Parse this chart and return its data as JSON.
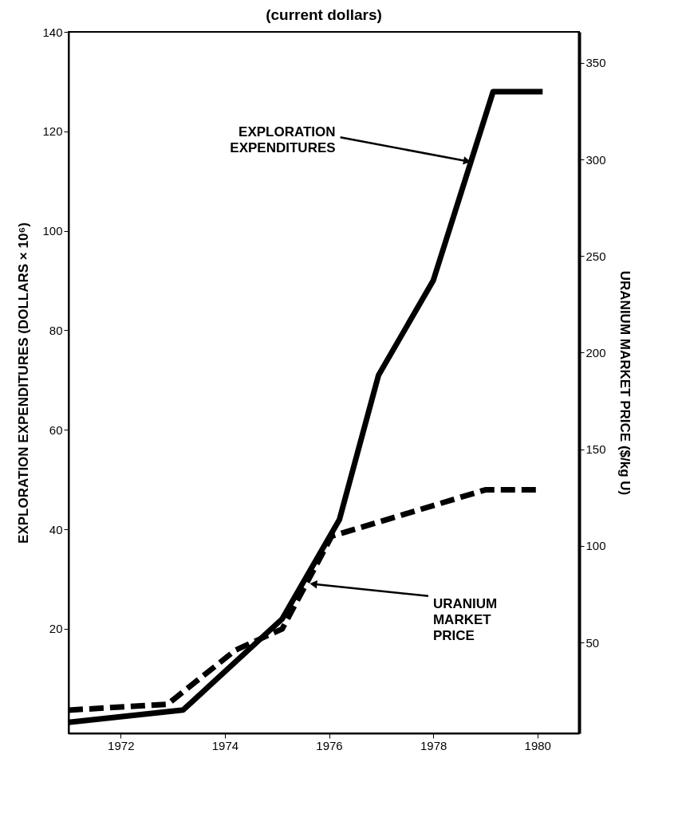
{
  "chart_data": {
    "type": "line",
    "title": "(current dollars)",
    "ylabel": "EXPLORATION EXPENDITURES  (DOLLARS × 10⁶)",
    "y2label": "URANIUM MARKET PRICE ($/kg U)",
    "xlim": [
      1971,
      1980.8
    ],
    "xticks": [
      1972,
      1974,
      1976,
      1978,
      1980
    ],
    "ylim": [
      -1,
      140
    ],
    "yticks": [
      20,
      40,
      60,
      80,
      100,
      120,
      140
    ],
    "y2lim": [
      3,
      366
    ],
    "y2ticks": [
      50,
      100,
      150,
      200,
      250,
      300,
      350
    ],
    "series": [
      {
        "color": "#000000",
        "line_style": "solid",
        "x": [
          1971,
          1973.2,
          1975.1,
          1976.2,
          1976.95,
          1978,
          1979.15,
          1980.1
        ],
        "values": [
          1.2,
          3.7,
          22,
          42,
          71,
          90,
          128,
          128
        ]
      },
      {
        "color": "#000000",
        "line_style": "dashed",
        "axis": "y2",
        "x": [
          1971,
          1972.9,
          1974.2,
          1975.1,
          1976.05,
          1977.4,
          1979,
          1980.05
        ],
        "values": [
          15,
          18,
          46,
          57,
          105,
          116,
          129,
          129
        ]
      }
    ],
    "annotations": [
      {
        "text": "EXPLORATION\nEXPENDITURES",
        "x": 1978.65,
        "y": 114
      },
      {
        "text": "URANIUM\nMARKET\nPRICE",
        "x": 1975.7,
        "y": 29
      }
    ],
    "grid": false,
    "marker": "none"
  }
}
